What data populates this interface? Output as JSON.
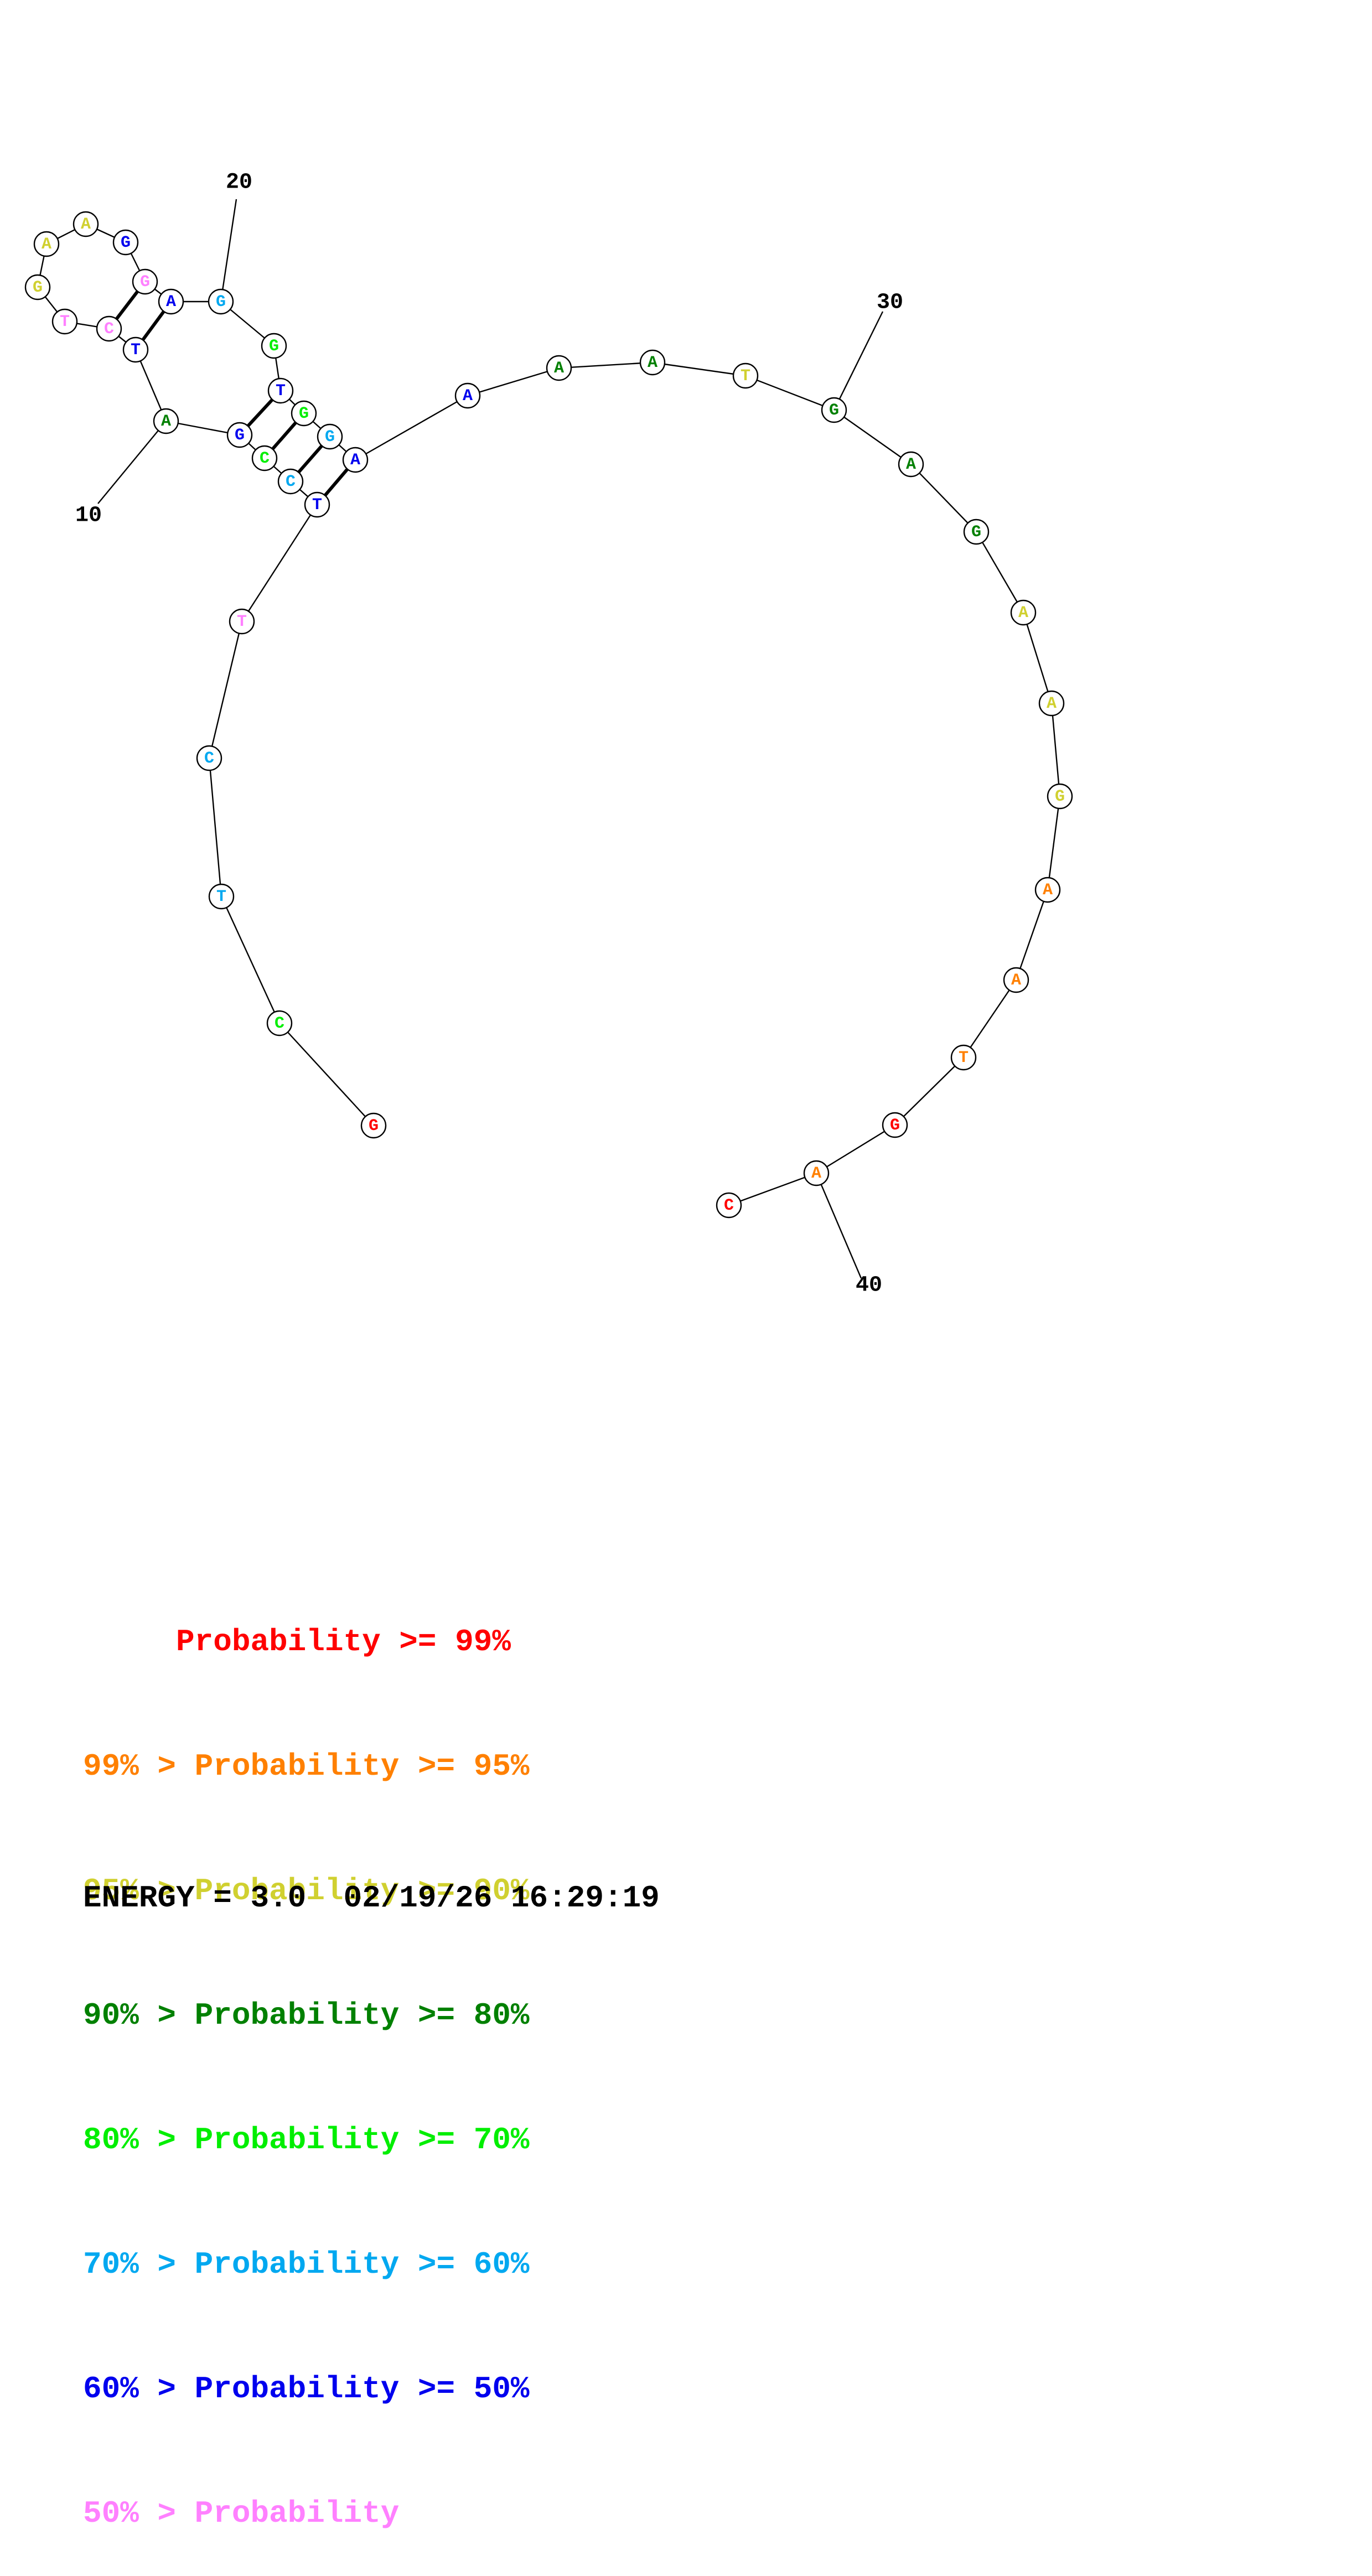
{
  "colors": {
    "p99": "#ff0000",
    "p95": "#ff8000",
    "p90": "#d0d030",
    "p80": "#008000",
    "p70": "#00ee00",
    "p60": "#00a8f0",
    "p50": "#0000ee",
    "plow": "#ff80ff"
  },
  "nucleotides": [
    {
      "i": 1,
      "base": "G",
      "prob": "p99"
    },
    {
      "i": 2,
      "base": "C",
      "prob": "p70"
    },
    {
      "i": 3,
      "base": "T",
      "prob": "p60"
    },
    {
      "i": 4,
      "base": "C",
      "prob": "p60"
    },
    {
      "i": 5,
      "base": "T",
      "prob": "plow"
    },
    {
      "i": 6,
      "base": "T",
      "prob": "p50"
    },
    {
      "i": 7,
      "base": "C",
      "prob": "p60"
    },
    {
      "i": 8,
      "base": "C",
      "prob": "p70"
    },
    {
      "i": 9,
      "base": "G",
      "prob": "p50"
    },
    {
      "i": 10,
      "base": "A",
      "prob": "p80"
    },
    {
      "i": 11,
      "base": "T",
      "prob": "p50"
    },
    {
      "i": 12,
      "base": "C",
      "prob": "plow"
    },
    {
      "i": 13,
      "base": "T",
      "prob": "plow"
    },
    {
      "i": 14,
      "base": "G",
      "prob": "p90"
    },
    {
      "i": 15,
      "base": "A",
      "prob": "p90"
    },
    {
      "i": 16,
      "base": "A",
      "prob": "p90"
    },
    {
      "i": 17,
      "base": "G",
      "prob": "p50"
    },
    {
      "i": 18,
      "base": "G",
      "prob": "plow"
    },
    {
      "i": 19,
      "base": "A",
      "prob": "p50"
    },
    {
      "i": 20,
      "base": "G",
      "prob": "p60"
    },
    {
      "i": 21,
      "base": "G",
      "prob": "p70"
    },
    {
      "i": 22,
      "base": "T",
      "prob": "p50"
    },
    {
      "i": 23,
      "base": "G",
      "prob": "p70"
    },
    {
      "i": 24,
      "base": "G",
      "prob": "p60"
    },
    {
      "i": 25,
      "base": "A",
      "prob": "p50"
    },
    {
      "i": 26,
      "base": "A",
      "prob": "p50"
    },
    {
      "i": 27,
      "base": "A",
      "prob": "p80"
    },
    {
      "i": 28,
      "base": "A",
      "prob": "p80"
    },
    {
      "i": 29,
      "base": "T",
      "prob": "p90"
    },
    {
      "i": 30,
      "base": "G",
      "prob": "p80"
    },
    {
      "i": 31,
      "base": "A",
      "prob": "p80"
    },
    {
      "i": 32,
      "base": "G",
      "prob": "p80"
    },
    {
      "i": 33,
      "base": "A",
      "prob": "p90"
    },
    {
      "i": 34,
      "base": "A",
      "prob": "p90"
    },
    {
      "i": 35,
      "base": "G",
      "prob": "p90"
    },
    {
      "i": 36,
      "base": "A",
      "prob": "p95"
    },
    {
      "i": 37,
      "base": "A",
      "prob": "p95"
    },
    {
      "i": 38,
      "base": "T",
      "prob": "p95"
    },
    {
      "i": 39,
      "base": "G",
      "prob": "p99"
    },
    {
      "i": 40,
      "base": "A",
      "prob": "p95"
    },
    {
      "i": 41,
      "base": "C",
      "prob": "p99"
    }
  ],
  "pairs": [
    [
      6,
      25
    ],
    [
      7,
      24
    ],
    [
      8,
      23
    ],
    [
      9,
      22
    ],
    [
      11,
      19
    ],
    [
      12,
      18
    ]
  ],
  "position_labels": [
    {
      "i": 10,
      "label": "10"
    },
    {
      "i": 20,
      "label": "20"
    },
    {
      "i": 30,
      "label": "30"
    },
    {
      "i": 40,
      "label": "40"
    }
  ],
  "legend": [
    {
      "text": "     Probability >= 99%",
      "prob": "p99"
    },
    {
      "text": "99% > Probability >= 95%",
      "prob": "p95"
    },
    {
      "text": "95% > Probability >= 90%",
      "prob": "p90"
    },
    {
      "text": "90% > Probability >= 80%",
      "prob": "p80"
    },
    {
      "text": "80% > Probability >= 70%",
      "prob": "p70"
    },
    {
      "text": "70% > Probability >= 60%",
      "prob": "p60"
    },
    {
      "text": "60% > Probability >= 50%",
      "prob": "p50"
    },
    {
      "text": "50% > Probability",
      "prob": "plow"
    }
  ],
  "footer": {
    "energy": "ENERGY = 3.0",
    "timestamp": "02/19/26 16:29:19"
  }
}
